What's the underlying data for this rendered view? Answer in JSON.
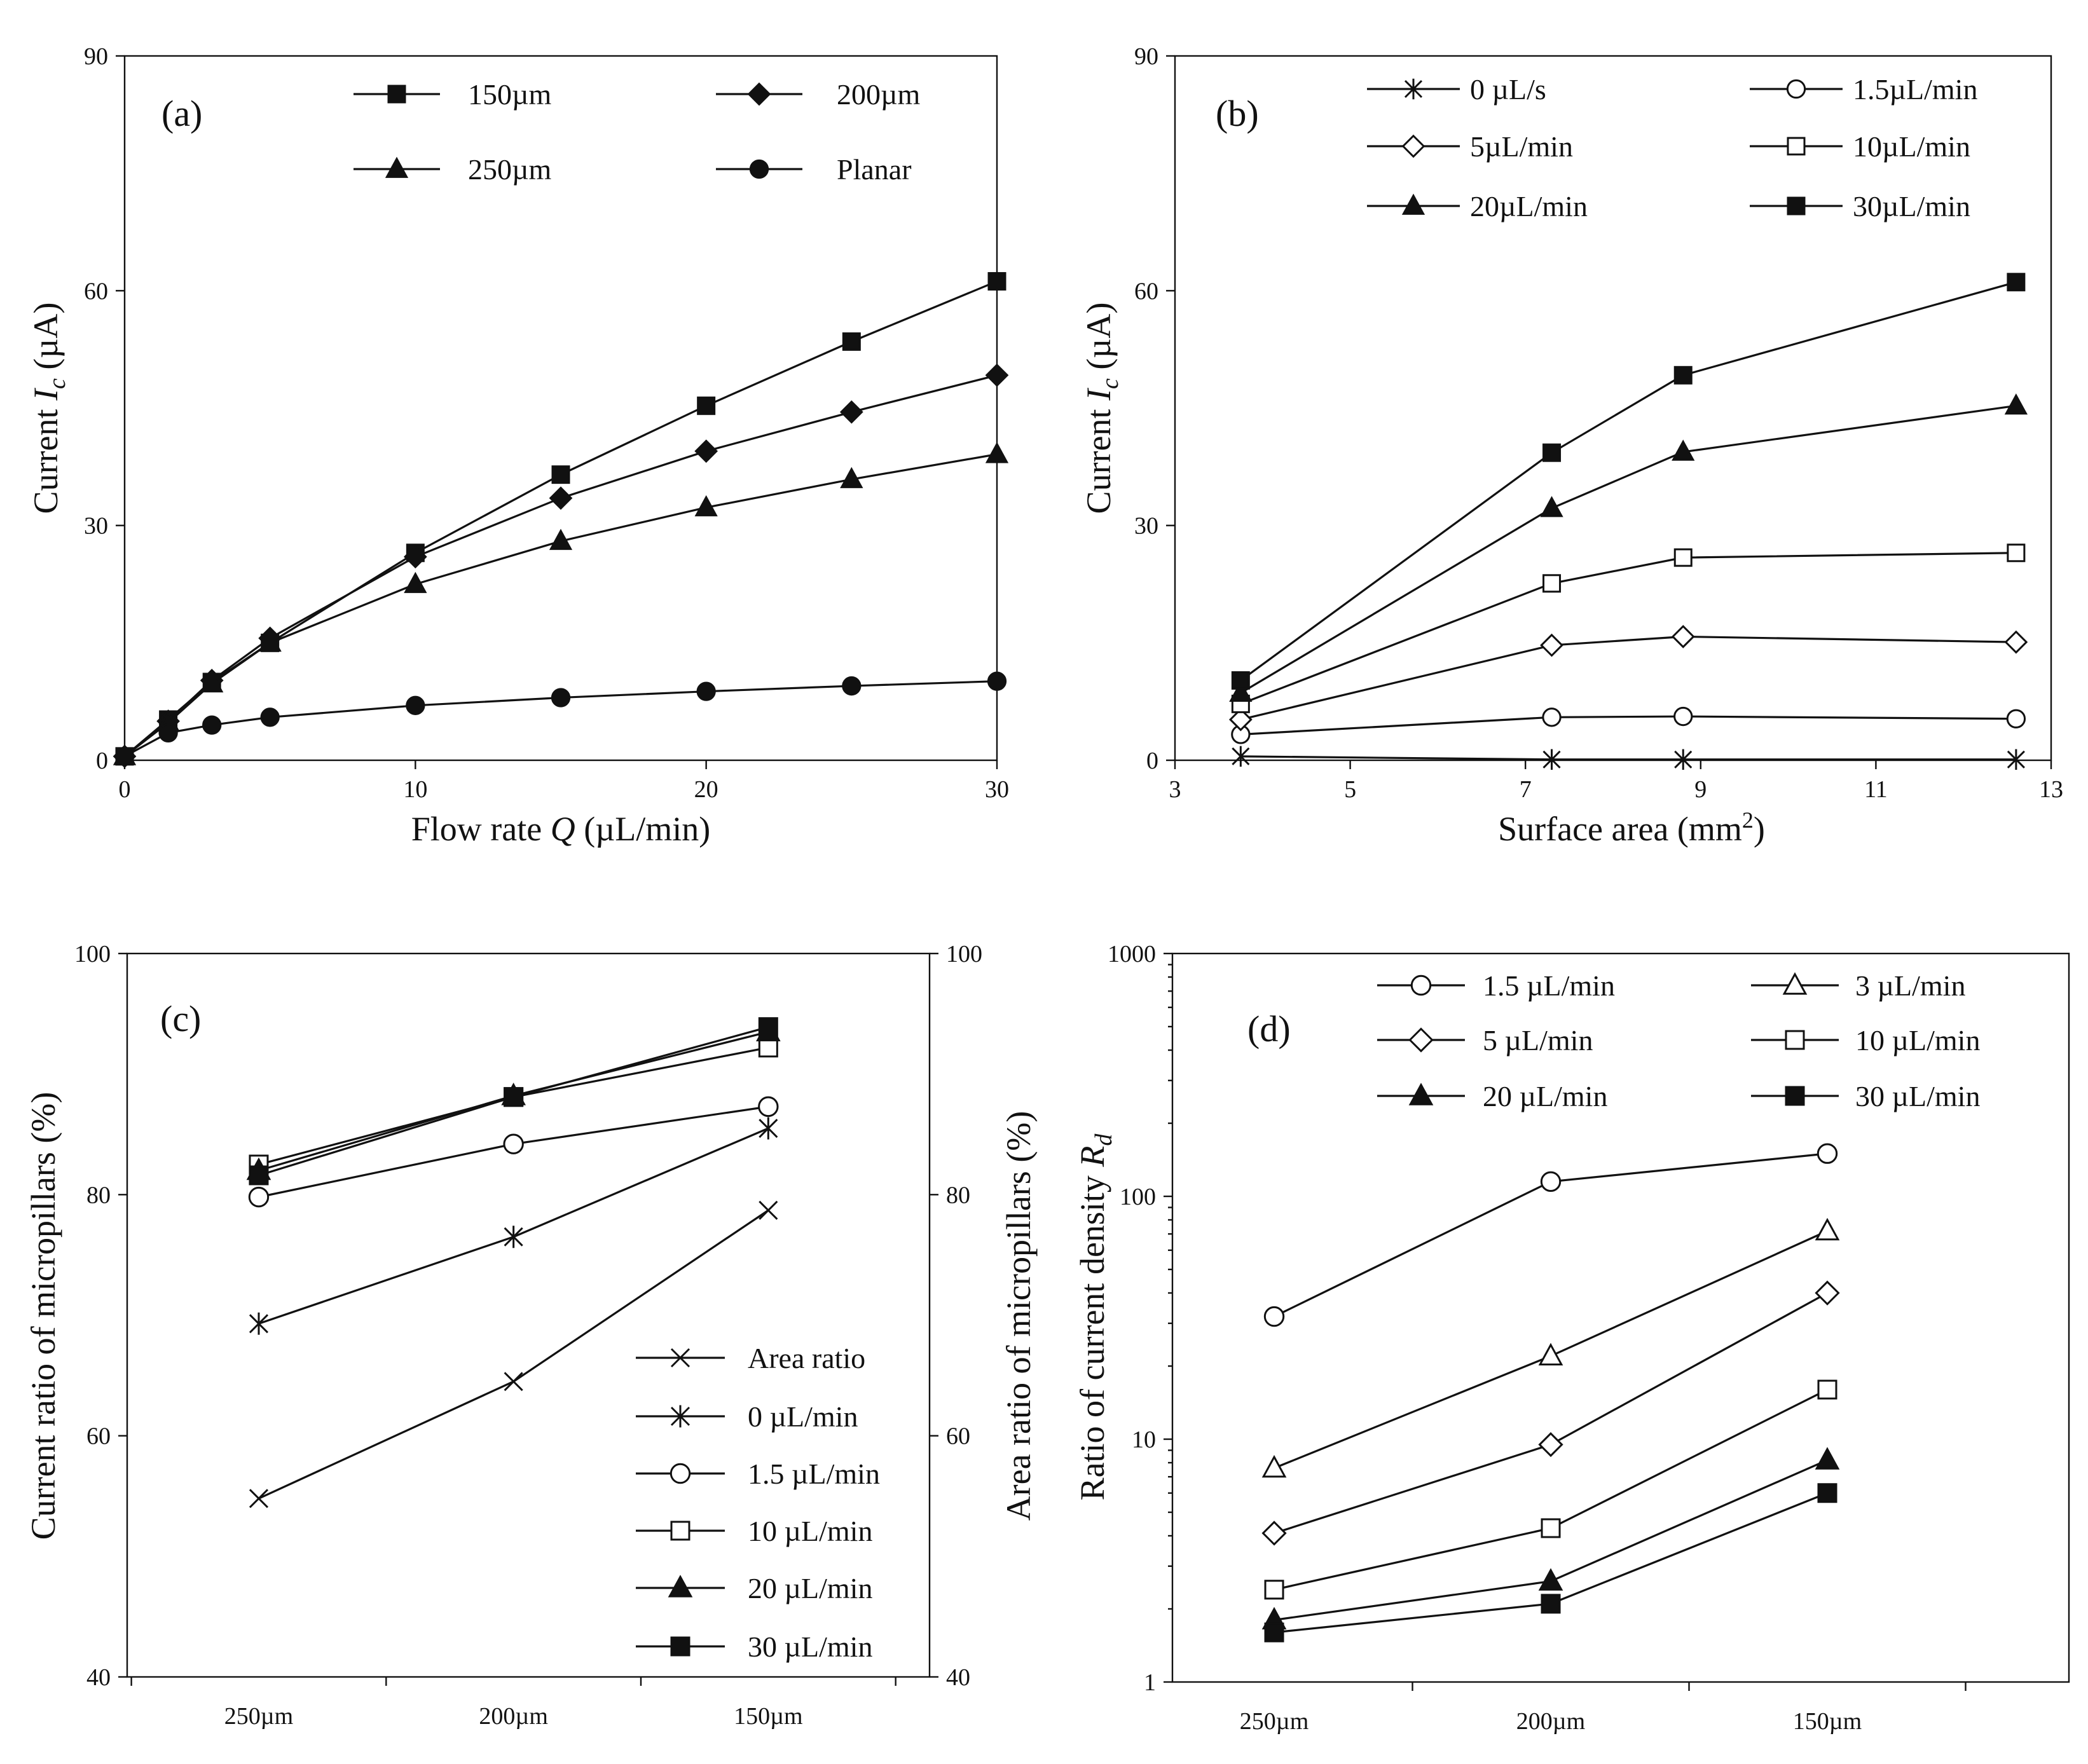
{
  "chart_data": [
    {
      "id": "a",
      "type": "line",
      "panel_label": "(a)",
      "ylabel": "Current",
      "ylabel_symbol": "I",
      "ylabel_sub": "c",
      "ylabel_unit": "(µA)",
      "xlabel": "Flow rate",
      "xlabel_symbol": "Q",
      "xlabel_unit": "(µL/min)",
      "xlim": [
        0,
        30
      ],
      "ylim": [
        0,
        90
      ],
      "xticks": [
        0,
        10,
        20,
        30
      ],
      "yticks": [
        0,
        30,
        60,
        90
      ],
      "legend_position": "top",
      "series": [
        {
          "name": "150µm",
          "marker": "square-filled",
          "x": [
            0,
            1.5,
            3,
            5,
            10,
            15,
            20,
            25,
            30
          ],
          "y": [
            0.5,
            5.2,
            10,
            15,
            26.5,
            36.5,
            45.3,
            53.5,
            61.2
          ]
        },
        {
          "name": "200µm",
          "marker": "diamond-filled",
          "x": [
            0,
            1.5,
            3,
            5,
            10,
            15,
            20,
            25,
            30
          ],
          "y": [
            0.5,
            5,
            10.2,
            15.6,
            26,
            33.5,
            39.5,
            44.5,
            49.2
          ]
        },
        {
          "name": "250µm",
          "marker": "triangle-filled",
          "x": [
            0,
            1.5,
            3,
            5,
            10,
            15,
            20,
            25,
            30
          ],
          "y": [
            0.5,
            4.8,
            9.8,
            15,
            22.5,
            28,
            32.3,
            35.9,
            39.1
          ]
        },
        {
          "name": "Planar",
          "marker": "circle-filled",
          "x": [
            0,
            1.5,
            3,
            5,
            10,
            15,
            20,
            25,
            30
          ],
          "y": [
            0.5,
            3.5,
            4.5,
            5.5,
            7,
            8,
            8.8,
            9.5,
            10.1
          ]
        }
      ]
    },
    {
      "id": "b",
      "type": "line",
      "panel_label": "(b)",
      "ylabel": "Current",
      "ylabel_symbol": "I",
      "ylabel_sub": "c",
      "ylabel_unit": "(µA)",
      "xlabel": "Surface area (mm",
      "xlabel_sup": "2",
      "xlabel_end": ")",
      "xlim": [
        3,
        13
      ],
      "ylim": [
        0,
        90
      ],
      "xticks": [
        3,
        5,
        7,
        9,
        11,
        13
      ],
      "yticks": [
        0,
        30,
        60,
        90
      ],
      "legend_position": "top",
      "series": [
        {
          "name": "0 µL/s",
          "marker": "asterisk",
          "x": [
            3.75,
            7.3,
            8.8,
            12.6
          ],
          "y": [
            0.5,
            0.1,
            0.1,
            0.1
          ]
        },
        {
          "name": "1.5µL/min",
          "marker": "circle-open",
          "x": [
            3.75,
            7.3,
            8.8,
            12.6
          ],
          "y": [
            3.3,
            5.5,
            5.6,
            5.3
          ]
        },
        {
          "name": "5µL/min",
          "marker": "diamond-open",
          "x": [
            3.75,
            7.3,
            8.8,
            12.6
          ],
          "y": [
            5.2,
            14.7,
            15.8,
            15.1
          ]
        },
        {
          "name": "10µL/min",
          "marker": "square-open",
          "x": [
            3.75,
            7.3,
            8.8,
            12.6
          ],
          "y": [
            7.2,
            22.6,
            25.9,
            26.5
          ]
        },
        {
          "name": "20µL/min",
          "marker": "triangle-filled",
          "x": [
            3.75,
            7.3,
            8.8,
            12.6
          ],
          "y": [
            8.6,
            32.2,
            39.4,
            45.3
          ]
        },
        {
          "name": "30µL/min",
          "marker": "square-filled",
          "x": [
            3.75,
            7.3,
            8.8,
            12.6
          ],
          "y": [
            10.2,
            39.3,
            49.2,
            61.1
          ]
        }
      ]
    },
    {
      "id": "c",
      "type": "line",
      "panel_label": "(c)",
      "ylabel": "Current ratio of micropillars (%)",
      "ylabel_right": "Area ratio of micropillars (%)",
      "categories": [
        "250µm",
        "200µm",
        "150µm"
      ],
      "ylim": [
        40,
        100
      ],
      "yticks": [
        40,
        60,
        80,
        100
      ],
      "legend_position": "bottom-right",
      "series": [
        {
          "name": "Area ratio",
          "marker": "x",
          "values": [
            54.8,
            64.5,
            78.7
          ]
        },
        {
          "name": "0 µL/min",
          "marker": "asterisk",
          "values": [
            69.3,
            76.5,
            85.5
          ]
        },
        {
          "name": "1.5 µL/min",
          "marker": "circle-open",
          "values": [
            79.8,
            84.2,
            87.3
          ]
        },
        {
          "name": "10 µL/min",
          "marker": "square-open",
          "values": [
            82.5,
            88.1,
            92.2
          ]
        },
        {
          "name": "20 µL/min",
          "marker": "triangle-filled",
          "values": [
            82,
            88.2,
            93.5
          ]
        },
        {
          "name": "30 µL/min",
          "marker": "square-filled",
          "values": [
            81.6,
            88.1,
            93.9
          ]
        }
      ]
    },
    {
      "id": "d",
      "type": "line",
      "panel_label": "(d)",
      "ylabel": "Ratio of current density",
      "ylabel_symbol": "R",
      "ylabel_sub": "d",
      "categories": [
        "250µm",
        "200µm",
        "150µm"
      ],
      "yscale": "log",
      "ylim": [
        1,
        1000
      ],
      "yticks": [
        1,
        10,
        100,
        1000
      ],
      "legend_position": "top",
      "series": [
        {
          "name": "1.5 µL/min",
          "marker": "circle-open",
          "values": [
            32,
            115,
            150
          ]
        },
        {
          "name": "3 µL/min",
          "marker": "triangle-open",
          "values": [
            7.6,
            22,
            72
          ]
        },
        {
          "name": "5 µL/min",
          "marker": "diamond-open",
          "values": [
            4.1,
            9.5,
            40
          ]
        },
        {
          "name": "10 µL/min",
          "marker": "square-open",
          "values": [
            2.4,
            4.3,
            16
          ]
        },
        {
          "name": "20 µL/min",
          "marker": "triangle-filled",
          "values": [
            1.8,
            2.6,
            8.2
          ]
        },
        {
          "name": "30 µL/min",
          "marker": "square-filled",
          "values": [
            1.6,
            2.1,
            6
          ]
        }
      ]
    }
  ]
}
